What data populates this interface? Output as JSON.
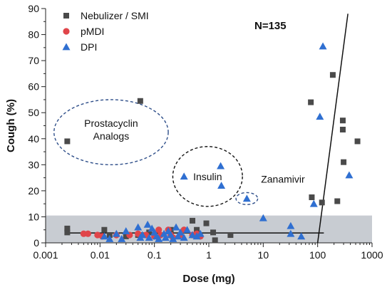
{
  "chart_data": {
    "type": "scatter",
    "xscale": "log",
    "xlim": [
      0.001,
      1000
    ],
    "ylim": [
      0,
      90
    ],
    "xlabel": "Dose (mg)",
    "ylabel": "Cough (%)",
    "xticks": [
      {
        "value": 0.001,
        "label": "0.001"
      },
      {
        "value": 0.01,
        "label": "0.01"
      },
      {
        "value": 0.1,
        "label": "0.1"
      },
      {
        "value": 1,
        "label": "1"
      },
      {
        "value": 10,
        "label": "10"
      },
      {
        "value": 100,
        "label": "100"
      },
      {
        "value": 1000,
        "label": "1000"
      }
    ],
    "yticks": [
      0,
      10,
      20,
      30,
      40,
      50,
      60,
      70,
      80,
      90
    ],
    "n_label": "N=135",
    "legend": {
      "placement": "top-left"
    },
    "band": {
      "y0": 0,
      "y1": 10.5,
      "color": "#c8ccd2"
    },
    "baseline": {
      "x0": 0.0025,
      "x1": 130,
      "y": 3.8
    },
    "trend_line": {
      "x0": 100,
      "y0": 0,
      "x1": 360,
      "y1": 88
    },
    "annotations": [
      {
        "text_lines": [
          "Prostacyclin",
          "Analogs"
        ],
        "x": 0.016,
        "y": 43.5,
        "ellipse": {
          "cx": 0.016,
          "cy": 42.5,
          "rx_decades": 1.05,
          "ry": 12.5,
          "color": "#2f4f8a"
        }
      },
      {
        "text_lines": [
          "Insulin"
        ],
        "x": 0.95,
        "y": 25.5,
        "ellipse": {
          "cx": 0.95,
          "cy": 25.5,
          "rx_decades": 0.64,
          "ry": 11.5,
          "color": "#111111"
        }
      },
      {
        "text_lines": [
          "Zanamivir"
        ],
        "x": 23,
        "y": 24.5,
        "ellipse": {
          "cx": 5,
          "cy": 17,
          "rx_decades": 0.2,
          "ry": 2.3,
          "color": "#2f4f8a"
        }
      }
    ],
    "series": [
      {
        "name": "Nebulizer / SMI",
        "marker": "square",
        "color": "#4a4a4a",
        "points": [
          [
            0.0025,
            39
          ],
          [
            0.0025,
            5.5
          ],
          [
            0.0025,
            4
          ],
          [
            0.055,
            54.5
          ],
          [
            0.012,
            5
          ],
          [
            0.015,
            3
          ],
          [
            0.03,
            2.5
          ],
          [
            0.05,
            3
          ],
          [
            0.08,
            4
          ],
          [
            0.1,
            3
          ],
          [
            0.2,
            5
          ],
          [
            0.3,
            3
          ],
          [
            0.5,
            8.5
          ],
          [
            0.6,
            5
          ],
          [
            0.9,
            7.5
          ],
          [
            1.2,
            4
          ],
          [
            1.3,
            1
          ],
          [
            2.5,
            3
          ],
          [
            75,
            54
          ],
          [
            78,
            17.5
          ],
          [
            120,
            15.5
          ],
          [
            190,
            64.5
          ],
          [
            230,
            16
          ],
          [
            290,
            47
          ],
          [
            290,
            43.5
          ],
          [
            300,
            31
          ],
          [
            540,
            39
          ]
        ]
      },
      {
        "name": "pMDI",
        "marker": "circle",
        "color": "#e0454a",
        "points": [
          [
            0.005,
            3.5
          ],
          [
            0.006,
            3.5
          ],
          [
            0.009,
            3
          ],
          [
            0.011,
            2.5
          ],
          [
            0.02,
            3
          ],
          [
            0.035,
            3
          ],
          [
            0.05,
            3.5
          ],
          [
            0.07,
            3
          ],
          [
            0.1,
            2.5
          ],
          [
            0.12,
            5
          ],
          [
            0.13,
            3
          ],
          [
            0.18,
            5
          ],
          [
            0.2,
            3
          ],
          [
            0.22,
            2
          ],
          [
            0.3,
            3
          ],
          [
            0.35,
            5
          ],
          [
            0.5,
            3
          ],
          [
            0.6,
            3.5
          ],
          [
            0.7,
            2.5
          ]
        ]
      },
      {
        "name": "DPI",
        "marker": "triangle",
        "color": "#2f6fd1",
        "points": [
          [
            0.35,
            25.5
          ],
          [
            1.65,
            29.5
          ],
          [
            1.7,
            22
          ],
          [
            5,
            17
          ],
          [
            10,
            9.5
          ],
          [
            32,
            6.5
          ],
          [
            32,
            3.5
          ],
          [
            50,
            2.5
          ],
          [
            85,
            15
          ],
          [
            110,
            48.5
          ],
          [
            125,
            75.5
          ],
          [
            380,
            26
          ],
          [
            0.012,
            2.5
          ],
          [
            0.015,
            1.5
          ],
          [
            0.02,
            3.5
          ],
          [
            0.025,
            1.5
          ],
          [
            0.03,
            4.5
          ],
          [
            0.05,
            6
          ],
          [
            0.055,
            2
          ],
          [
            0.06,
            3
          ],
          [
            0.075,
            7
          ],
          [
            0.08,
            2
          ],
          [
            0.09,
            5.5
          ],
          [
            0.1,
            4
          ],
          [
            0.11,
            2.5
          ],
          [
            0.12,
            1.5
          ],
          [
            0.15,
            3.5
          ],
          [
            0.16,
            2
          ],
          [
            0.18,
            4.5
          ],
          [
            0.2,
            3
          ],
          [
            0.22,
            1.5
          ],
          [
            0.25,
            6
          ],
          [
            0.27,
            2.5
          ],
          [
            0.3,
            4
          ],
          [
            0.35,
            2
          ],
          [
            0.4,
            5
          ],
          [
            0.5,
            3
          ],
          [
            0.6,
            2.5
          ],
          [
            0.7,
            3.5
          ]
        ]
      }
    ]
  }
}
